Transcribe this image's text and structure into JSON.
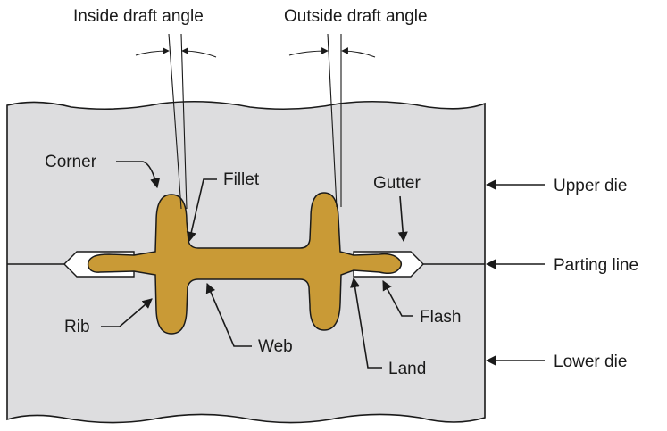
{
  "labels": {
    "inside_draft_angle": "Inside draft angle",
    "outside_draft_angle": "Outside draft angle",
    "corner": "Corner",
    "fillet": "Fillet",
    "gutter": "Gutter",
    "upper_die": "Upper die",
    "parting_line": "Parting line",
    "rib": "Rib",
    "web": "Web",
    "flash": "Flash",
    "land": "Land",
    "lower_die": "Lower die"
  },
  "colors": {
    "die": "#dddddf",
    "part": "#c99a36",
    "outline": "#1a1a1a"
  }
}
